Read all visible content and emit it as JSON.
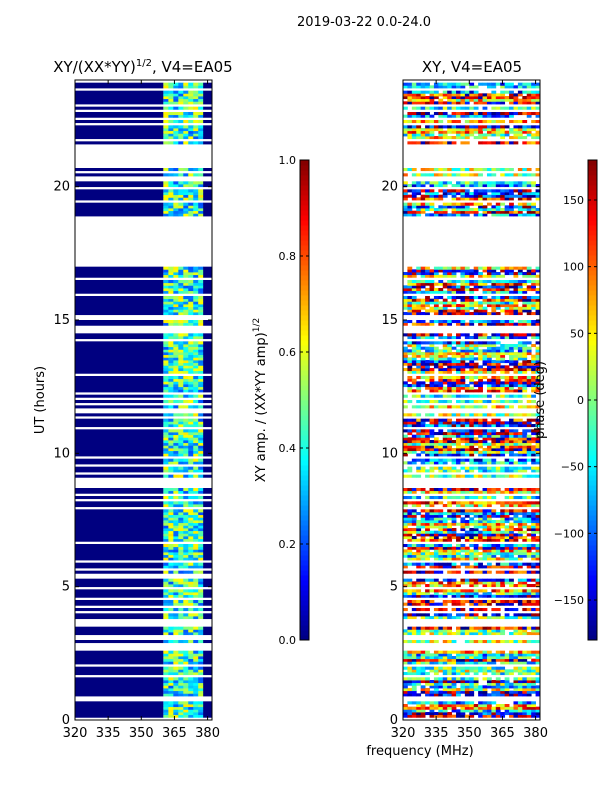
{
  "figure": {
    "suptitle": "2019-03-22 0.0-24.0",
    "shared_xlabel": "frequency (MHz)"
  },
  "chart_data": [
    {
      "type": "heatmap",
      "title_main": "XY/(XX*YY)",
      "title_exp": "1/2",
      "title_suffix": ", V4=EA05",
      "ylabel": "UT (hours)",
      "xlim": [
        320,
        382
      ],
      "ylim": [
        0,
        24
      ],
      "xticks": [
        320,
        335,
        350,
        365,
        380
      ],
      "yticks": [
        0,
        5,
        10,
        15,
        20
      ],
      "colorbar": {
        "label_main": "XY amp. / (XX*YY amp)",
        "label_exp": "1/2",
        "range": [
          0.0,
          1.0
        ],
        "ticks": [
          "0.0",
          "0.2",
          "0.4",
          "0.6",
          "0.8",
          "1.0"
        ],
        "tick_values": [
          0.0,
          0.2,
          0.4,
          0.6,
          0.8,
          1.0
        ],
        "colormap": "jet"
      },
      "active_band_mhz": [
        360,
        378
      ],
      "gaps_hours": [
        [
          17.0,
          18.6
        ],
        [
          20.9,
          21.5
        ]
      ],
      "low_band_value": 0.0,
      "active_band_value_range": [
        0.2,
        0.65
      ]
    },
    {
      "type": "heatmap",
      "title_main": "XY, V4=EA05",
      "xlim": [
        320,
        382
      ],
      "ylim": [
        0,
        24
      ],
      "xticks": [
        320,
        335,
        350,
        365,
        380
      ],
      "yticks": [
        0,
        5,
        10,
        15,
        20
      ],
      "colorbar": {
        "label_main": "phase (deg)",
        "range": [
          -180,
          180
        ],
        "ticks": [
          "−150",
          "−100",
          "−50",
          "0",
          "50",
          "100",
          "150"
        ],
        "tick_values": [
          -150,
          -100,
          -50,
          0,
          50,
          100,
          150
        ],
        "colormap": "jet"
      },
      "gaps_hours": [
        [
          17.0,
          18.6
        ],
        [
          20.9,
          21.5
        ]
      ],
      "value_range": [
        -180,
        180
      ]
    }
  ]
}
